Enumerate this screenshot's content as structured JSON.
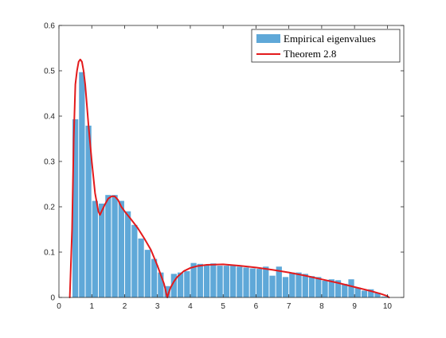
{
  "chart_data": {
    "type": "bar",
    "title": "",
    "xlabel": "",
    "ylabel": "",
    "xlim": [
      0,
      10.5
    ],
    "ylim": [
      0,
      0.6
    ],
    "xticks": [
      0,
      1,
      2,
      3,
      4,
      5,
      6,
      7,
      8,
      9,
      10
    ],
    "yticks": [
      0,
      0.1,
      0.2,
      0.3,
      0.4,
      0.5,
      0.6
    ],
    "grid": false,
    "legend_position": "top-right",
    "bar_width": 0.2,
    "series": [
      {
        "name": "Empirical eigenvalues",
        "type": "bar",
        "color": "#5fa8d8",
        "x": [
          0.5,
          0.7,
          0.9,
          1.1,
          1.3,
          1.5,
          1.7,
          1.9,
          2.1,
          2.3,
          2.5,
          2.7,
          2.9,
          3.1,
          3.3,
          3.5,
          3.7,
          3.9,
          4.1,
          4.3,
          4.5,
          4.7,
          4.9,
          5.1,
          5.3,
          5.5,
          5.7,
          5.9,
          6.1,
          6.3,
          6.5,
          6.7,
          6.9,
          7.1,
          7.3,
          7.5,
          7.7,
          7.9,
          8.1,
          8.3,
          8.5,
          8.7,
          8.9,
          9.1,
          9.3,
          9.5,
          9.7,
          9.9
        ],
        "values": [
          0.393,
          0.497,
          0.379,
          0.213,
          0.207,
          0.226,
          0.226,
          0.213,
          0.19,
          0.16,
          0.13,
          0.105,
          0.085,
          0.055,
          0.025,
          0.052,
          0.055,
          0.058,
          0.076,
          0.074,
          0.071,
          0.075,
          0.07,
          0.07,
          0.07,
          0.068,
          0.066,
          0.064,
          0.063,
          0.068,
          0.048,
          0.068,
          0.045,
          0.055,
          0.055,
          0.052,
          0.047,
          0.045,
          0.037,
          0.04,
          0.038,
          0.03,
          0.04,
          0.022,
          0.015,
          0.018,
          0.01,
          0.002
        ]
      },
      {
        "name": "Theorem 2.8",
        "type": "line",
        "color": "#e31a1c",
        "x": [
          0.33,
          0.4,
          0.45,
          0.5,
          0.55,
          0.6,
          0.65,
          0.7,
          0.75,
          0.8,
          0.9,
          1.0,
          1.1,
          1.2,
          1.25,
          1.3,
          1.4,
          1.5,
          1.6,
          1.7,
          1.8,
          1.9,
          2.0,
          2.2,
          2.4,
          2.6,
          2.8,
          3.0,
          3.1,
          3.2,
          3.25,
          3.28,
          3.3,
          3.32,
          3.35,
          3.4,
          3.5,
          3.6,
          3.8,
          4.0,
          4.2,
          4.5,
          5.0,
          5.5,
          6.0,
          6.5,
          7.0,
          7.5,
          8.0,
          8.5,
          9.0,
          9.5,
          9.8,
          10.0,
          10.05
        ],
        "values": [
          0.0,
          0.15,
          0.35,
          0.47,
          0.5,
          0.52,
          0.525,
          0.52,
          0.5,
          0.47,
          0.38,
          0.3,
          0.23,
          0.19,
          0.182,
          0.19,
          0.205,
          0.218,
          0.223,
          0.223,
          0.215,
          0.2,
          0.19,
          0.172,
          0.153,
          0.13,
          0.105,
          0.07,
          0.05,
          0.03,
          0.015,
          0.005,
          0.0,
          0.005,
          0.012,
          0.022,
          0.035,
          0.045,
          0.058,
          0.065,
          0.069,
          0.072,
          0.073,
          0.07,
          0.066,
          0.061,
          0.055,
          0.048,
          0.04,
          0.032,
          0.023,
          0.014,
          0.008,
          0.003,
          0.0
        ]
      }
    ]
  }
}
